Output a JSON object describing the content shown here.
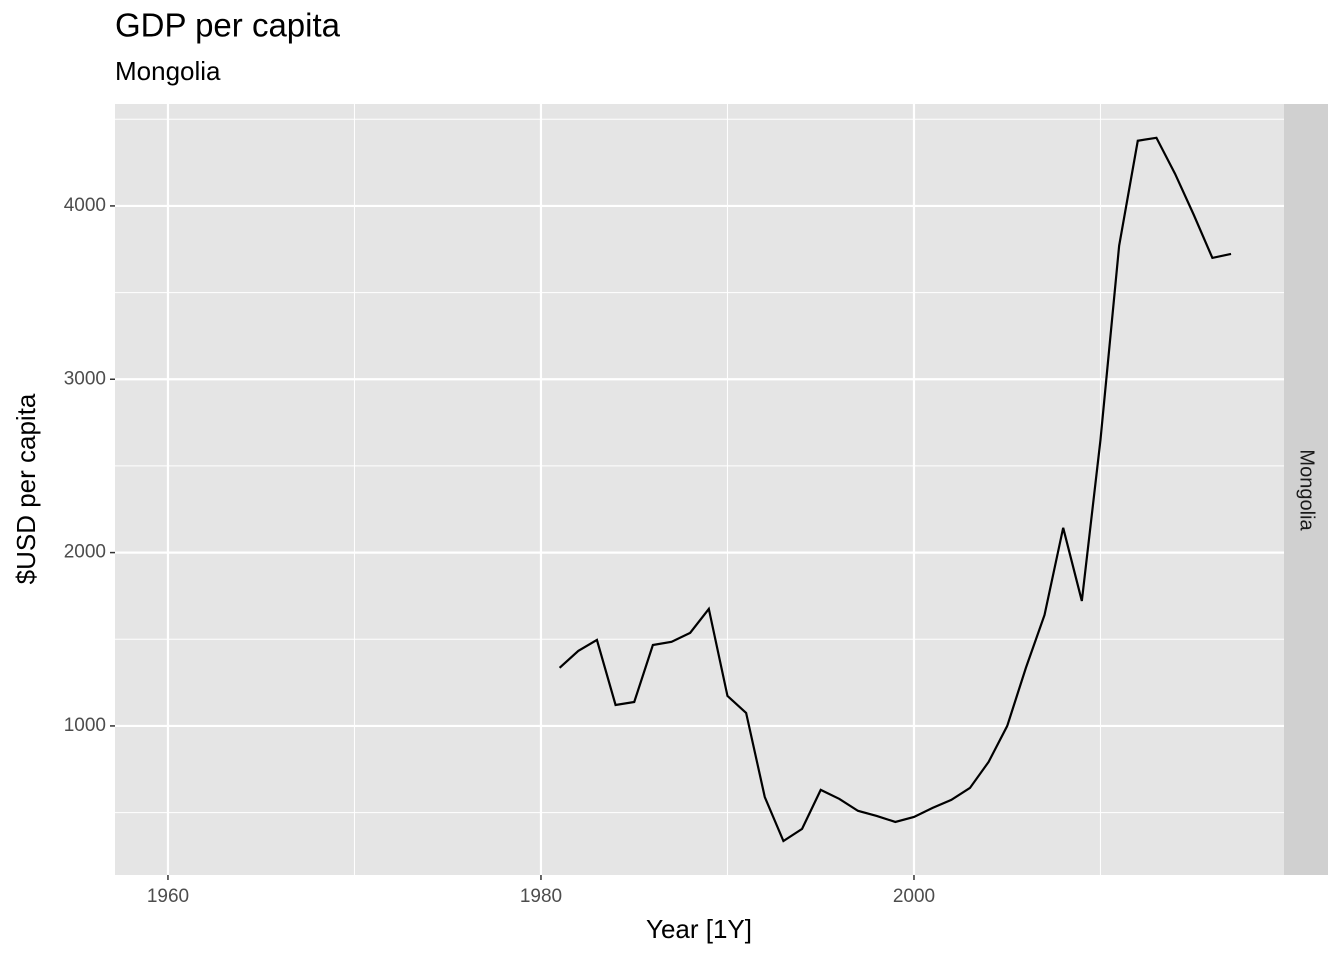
{
  "chart_data": {
    "type": "line",
    "title": "GDP per capita",
    "subtitle": "Mongolia",
    "facet_label": "Mongolia",
    "x_label": "Year [1Y]",
    "y_label": "$USD per capita",
    "x": [
      1981,
      1982,
      1983,
      1984,
      1985,
      1986,
      1987,
      1988,
      1989,
      1990,
      1991,
      1992,
      1993,
      1994,
      1995,
      1996,
      1997,
      1998,
      1999,
      2000,
      2001,
      2002,
      2003,
      2004,
      2005,
      2006,
      2007,
      2008,
      2009,
      2010,
      2011,
      2012,
      2013,
      2014,
      2015,
      2016,
      2017
    ],
    "series": [
      {
        "name": "Mongolia",
        "color": "#000000",
        "values": [
          1335,
          1433,
          1496,
          1121,
          1138,
          1467,
          1485,
          1537,
          1675,
          1173,
          1075,
          590,
          336,
          406,
          631,
          579,
          510,
          481,
          446,
          475,
          527,
          573,
          642,
          792,
          1000,
          1335,
          1640,
          2143,
          1721,
          2650,
          3770,
          4376,
          4393,
          4185,
          3949,
          3700,
          3723
        ]
      }
    ],
    "xlim": [
      1957.16,
      2019.84
    ],
    "ylim": [
      140,
      4588
    ],
    "xticks": [
      1960,
      1980,
      2000
    ],
    "yticks": [
      1000,
      2000,
      3000,
      4000
    ],
    "x_minor_grid": [
      1970,
      1990,
      2010
    ],
    "y_minor_grid": [
      500,
      1500,
      2500,
      3500,
      4500
    ],
    "grid": true
  }
}
